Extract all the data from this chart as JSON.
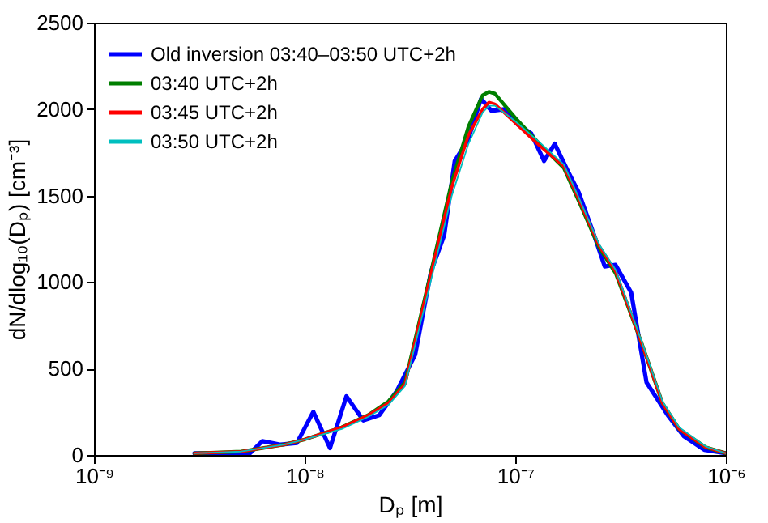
{
  "chart_data": {
    "type": "line",
    "xlabel": "Dₚ [m]",
    "ylabel": "dN/dlog₁₀(Dₚ) [cm⁻³]",
    "log": "x",
    "xlim": [
      1e-09,
      1e-06
    ],
    "ylim": [
      0,
      2500
    ],
    "xticks": [
      {
        "value": 1e-09,
        "label": "10⁻⁹"
      },
      {
        "value": 1e-08,
        "label": "10⁻⁸"
      },
      {
        "value": 1e-07,
        "label": "10⁻⁷"
      },
      {
        "value": 1e-06,
        "label": "10⁻⁶"
      }
    ],
    "yticks": [
      0,
      500,
      1000,
      1500,
      2000,
      2500
    ],
    "grid": false,
    "legend": "top left",
    "marker": "none",
    "line_style": "solid",
    "series": [
      {
        "name": "Old inversion 03:40–03:50 UTC+2h",
        "color": "#0000ff",
        "x": [
          3e-09,
          5.5e-09,
          6.3e-09,
          7.7e-09,
          9.2e-09,
          1.1e-08,
          1.32e-08,
          1.58e-08,
          1.9e-08,
          2.26e-08,
          2.74e-08,
          3.35e-08,
          3.98e-08,
          4.6e-08,
          5.16e-08,
          5.96e-08,
          6.88e-08,
          7.72e-08,
          8.9e-08,
          1.03e-07,
          1.19e-07,
          1.37e-07,
          1.54e-07,
          1.78e-07,
          2e-07,
          2.37e-07,
          2.66e-07,
          2.99e-07,
          3.55e-07,
          4.2e-07,
          5.3e-07,
          6.3e-07,
          7.9e-07,
          1e-06
        ],
        "values": [
          10,
          10,
          80,
          60,
          70,
          250,
          40,
          340,
          200,
          230,
          370,
          580,
          1060,
          1270,
          1700,
          1820,
          2060,
          1990,
          2000,
          1910,
          1860,
          1700,
          1800,
          1640,
          1520,
          1270,
          1090,
          1100,
          940,
          420,
          230,
          110,
          30,
          10
        ]
      },
      {
        "name": "03:40 UTC+2h",
        "color": "#007f00",
        "x": [
          3e-09,
          5e-09,
          8e-09,
          1e-08,
          1.5e-08,
          2e-08,
          2.5e-08,
          3e-08,
          4e-08,
          5e-08,
          6e-08,
          7e-08,
          7.5e-08,
          8e-08,
          1e-07,
          1.3e-07,
          1.7e-07,
          2e-07,
          2.5e-07,
          3e-07,
          4e-07,
          5e-07,
          6e-07,
          8e-07,
          1e-06
        ],
        "values": [
          10,
          20,
          60,
          90,
          160,
          230,
          310,
          420,
          1070,
          1580,
          1900,
          2080,
          2100,
          2090,
          1950,
          1800,
          1660,
          1470,
          1200,
          1050,
          640,
          300,
          150,
          45,
          10
        ]
      },
      {
        "name": "03:45  UTC+2h",
        "color": "#ff0000",
        "x": [
          3e-09,
          5e-09,
          8e-09,
          1e-08,
          1.5e-08,
          2e-08,
          2.5e-08,
          3e-08,
          4e-08,
          5e-08,
          6e-08,
          7e-08,
          7.5e-08,
          8e-08,
          1e-07,
          1.3e-07,
          1.7e-07,
          2e-07,
          2.5e-07,
          3e-07,
          4e-07,
          5e-07,
          6e-07,
          8e-07,
          1e-06
        ],
        "values": [
          10,
          20,
          60,
          90,
          160,
          230,
          300,
          410,
          1060,
          1550,
          1850,
          2000,
          2040,
          2030,
          1920,
          1790,
          1670,
          1480,
          1210,
          1060,
          640,
          300,
          150,
          45,
          10
        ]
      },
      {
        "name": "03:50  UTC+2h",
        "color": "#00bfbf",
        "x": [
          3e-09,
          5e-09,
          8e-09,
          1e-08,
          1.5e-08,
          2e-08,
          2.5e-08,
          3e-08,
          4e-08,
          5e-08,
          6e-08,
          7e-08,
          7.5e-08,
          8e-08,
          1e-07,
          1.3e-07,
          1.7e-07,
          2e-07,
          2.5e-07,
          3e-07,
          4e-07,
          5e-07,
          6e-07,
          8e-07,
          1e-06
        ],
        "values": [
          10,
          20,
          60,
          90,
          150,
          220,
          290,
          400,
          1020,
          1500,
          1800,
          1980,
          2020,
          2020,
          1930,
          1810,
          1680,
          1490,
          1220,
          1070,
          650,
          310,
          160,
          50,
          10
        ]
      }
    ]
  }
}
